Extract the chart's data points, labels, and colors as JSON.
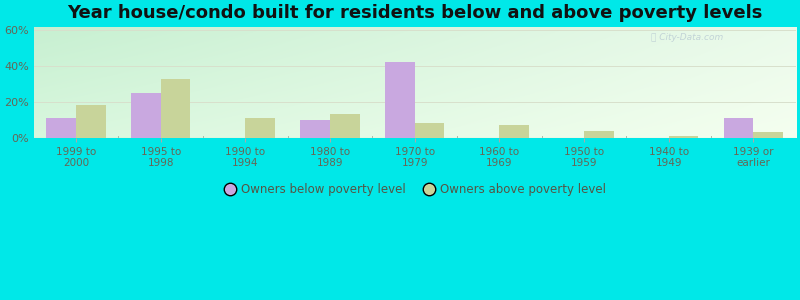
{
  "title": "Year house/condo built for residents below and above poverty levels",
  "categories": [
    "1999 to\n2000",
    "1995 to\n1998",
    "1990 to\n1994",
    "1980 to\n1989",
    "1970 to\n1979",
    "1960 to\n1969",
    "1950 to\n1959",
    "1940 to\n1949",
    "1939 or\nearlier"
  ],
  "below_poverty": [
    11,
    25,
    0,
    10,
    42,
    0,
    0,
    0,
    11
  ],
  "above_poverty": [
    18,
    33,
    11,
    13,
    8,
    7,
    4,
    1,
    3
  ],
  "below_color": "#c9a8e0",
  "above_color": "#c8d49a",
  "ylim": [
    0,
    62
  ],
  "yticks": [
    0,
    20,
    40,
    60
  ],
  "ytick_labels": [
    "0%",
    "20%",
    "40%",
    "60%"
  ],
  "bar_width": 0.35,
  "legend_below": "Owners below poverty level",
  "legend_above": "Owners above poverty level",
  "title_fontsize": 13,
  "outer_bg": "#00e8e8",
  "grid_color": "#d8e0cc"
}
